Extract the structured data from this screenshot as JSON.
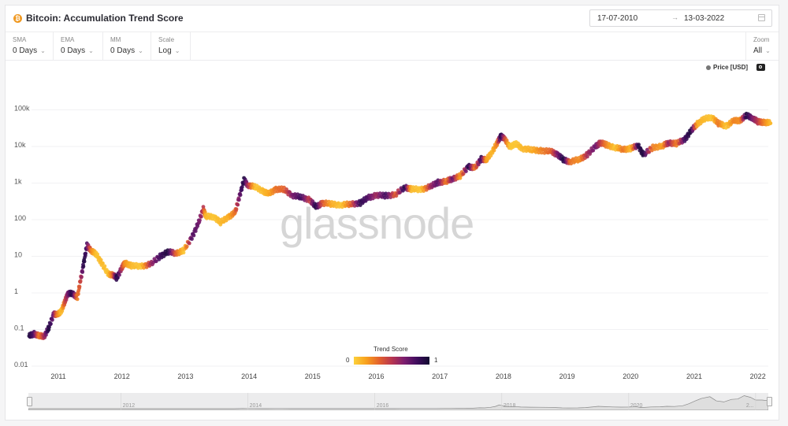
{
  "header": {
    "title": "Bitcoin: Accumulation Trend Score",
    "asset_icon": "bitcoin-icon",
    "date_from": "17-07-2010",
    "date_arrow": "→",
    "date_to": "13-03-2022",
    "calendar_icon": "calendar-icon"
  },
  "controls": {
    "sma": {
      "label": "SMA",
      "value": "0 Days"
    },
    "ema": {
      "label": "EMA",
      "value": "0 Days"
    },
    "mm": {
      "label": "MM",
      "value": "0 Days"
    },
    "scale": {
      "label": "Scale",
      "value": "Log"
    },
    "zoom": {
      "label": "Zoom",
      "value": "All"
    },
    "chevron": "⌄"
  },
  "legend": {
    "series_label": "Price [USD]",
    "camera_icon": "camera-icon"
  },
  "colorbar": {
    "title": "Trend Score",
    "min_label": "0",
    "max_label": "1"
  },
  "watermark": "glassnode",
  "navigator": {
    "labels": [
      "2012",
      "2014",
      "2016",
      "2018",
      "2020",
      "2..."
    ]
  },
  "colors": {
    "score_0": "#fcd13a",
    "score_025": "#f8a01e",
    "score_05": "#b8364f",
    "score_075": "#3f0d5e",
    "score_1": "#110a30",
    "bitcoin_orange": "#f09a24"
  },
  "chart_data": {
    "type": "scatter",
    "title": "Bitcoin: Accumulation Trend Score",
    "xlabel": "",
    "ylabel": "Price [USD]",
    "y_scale": "log",
    "ylim": [
      0.01,
      100000
    ],
    "y_ticks": [
      "0.01",
      "0.1",
      "1",
      "10",
      "100",
      "1k",
      "10k",
      "100k"
    ],
    "x_ticks": [
      "2011",
      "2012",
      "2013",
      "2014",
      "2015",
      "2016",
      "2017",
      "2018",
      "2019",
      "2020",
      "2021",
      "2022"
    ],
    "color_by": "Trend Score",
    "color_range": [
      0,
      1
    ],
    "grid": true,
    "legend_position": "top-right",
    "points": [
      {
        "t": 2010.54,
        "price": 0.06,
        "score": 0.95
      },
      {
        "t": 2010.62,
        "price": 0.07,
        "score": 0.8
      },
      {
        "t": 2010.7,
        "price": 0.06,
        "score": 0.3
      },
      {
        "t": 2010.78,
        "price": 0.06,
        "score": 0.6
      },
      {
        "t": 2010.85,
        "price": 0.1,
        "score": 0.95
      },
      {
        "t": 2010.93,
        "price": 0.25,
        "score": 0.7
      },
      {
        "t": 2010.98,
        "price": 0.22,
        "score": 0.35
      },
      {
        "t": 2011.05,
        "price": 0.3,
        "score": 0.05
      },
      {
        "t": 2011.1,
        "price": 0.5,
        "score": 0.45
      },
      {
        "t": 2011.15,
        "price": 0.9,
        "score": 0.7
      },
      {
        "t": 2011.22,
        "price": 0.85,
        "score": 0.95
      },
      {
        "t": 2011.3,
        "price": 0.7,
        "score": 0.3
      },
      {
        "t": 2011.35,
        "price": 2,
        "score": 0.5
      },
      {
        "t": 2011.4,
        "price": 6,
        "score": 0.95
      },
      {
        "t": 2011.45,
        "price": 18,
        "score": 0.8
      },
      {
        "t": 2011.52,
        "price": 13,
        "score": 0.3
      },
      {
        "t": 2011.6,
        "price": 10,
        "score": 0.05
      },
      {
        "t": 2011.68,
        "price": 6,
        "score": 0.1
      },
      {
        "t": 2011.78,
        "price": 3,
        "score": 0.05
      },
      {
        "t": 2011.86,
        "price": 2.8,
        "score": 0.4
      },
      {
        "t": 2011.92,
        "price": 2.3,
        "score": 0.95
      },
      {
        "t": 2012.0,
        "price": 4.5,
        "score": 0.55
      },
      {
        "t": 2012.05,
        "price": 6,
        "score": 0.25
      },
      {
        "t": 2012.15,
        "price": 5,
        "score": 0.1
      },
      {
        "t": 2012.3,
        "price": 4.8,
        "score": 0.05
      },
      {
        "t": 2012.45,
        "price": 5.5,
        "score": 0.6
      },
      {
        "t": 2012.6,
        "price": 9,
        "score": 0.85
      },
      {
        "t": 2012.72,
        "price": 12,
        "score": 0.95
      },
      {
        "t": 2012.85,
        "price": 11,
        "score": 0.4
      },
      {
        "t": 2012.97,
        "price": 13,
        "score": 0.05
      },
      {
        "t": 2013.1,
        "price": 30,
        "score": 0.8
      },
      {
        "t": 2013.2,
        "price": 70,
        "score": 0.75
      },
      {
        "t": 2013.28,
        "price": 180,
        "score": 0.55
      },
      {
        "t": 2013.32,
        "price": 110,
        "score": 0.1
      },
      {
        "t": 2013.45,
        "price": 110,
        "score": 0.05
      },
      {
        "t": 2013.55,
        "price": 75,
        "score": 0.1
      },
      {
        "t": 2013.68,
        "price": 110,
        "score": 0.15
      },
      {
        "t": 2013.78,
        "price": 140,
        "score": 0.35
      },
      {
        "t": 2013.85,
        "price": 400,
        "score": 0.75
      },
      {
        "t": 2013.92,
        "price": 1100,
        "score": 0.95
      },
      {
        "t": 2013.98,
        "price": 800,
        "score": 0.6
      },
      {
        "t": 2014.1,
        "price": 700,
        "score": 0.05
      },
      {
        "t": 2014.22,
        "price": 550,
        "score": 0.1
      },
      {
        "t": 2014.3,
        "price": 450,
        "score": 0.15
      },
      {
        "t": 2014.42,
        "price": 620,
        "score": 0.35
      },
      {
        "t": 2014.55,
        "price": 600,
        "score": 0.4
      },
      {
        "t": 2014.68,
        "price": 420,
        "score": 0.7
      },
      {
        "t": 2014.82,
        "price": 370,
        "score": 0.85
      },
      {
        "t": 2014.95,
        "price": 320,
        "score": 0.5
      },
      {
        "t": 2015.05,
        "price": 200,
        "score": 0.95
      },
      {
        "t": 2015.15,
        "price": 260,
        "score": 0.45
      },
      {
        "t": 2015.3,
        "price": 240,
        "score": 0.15
      },
      {
        "t": 2015.45,
        "price": 230,
        "score": 0.05
      },
      {
        "t": 2015.6,
        "price": 240,
        "score": 0.4
      },
      {
        "t": 2015.75,
        "price": 260,
        "score": 0.9
      },
      {
        "t": 2015.87,
        "price": 360,
        "score": 0.8
      },
      {
        "t": 2016.0,
        "price": 420,
        "score": 0.6
      },
      {
        "t": 2016.15,
        "price": 410,
        "score": 0.85
      },
      {
        "t": 2016.3,
        "price": 440,
        "score": 0.4
      },
      {
        "t": 2016.45,
        "price": 700,
        "score": 0.95
      },
      {
        "t": 2016.55,
        "price": 620,
        "score": 0.1
      },
      {
        "t": 2016.7,
        "price": 600,
        "score": 0.05
      },
      {
        "t": 2016.85,
        "price": 720,
        "score": 0.6
      },
      {
        "t": 2016.97,
        "price": 950,
        "score": 0.8
      },
      {
        "t": 2017.1,
        "price": 1000,
        "score": 0.3
      },
      {
        "t": 2017.2,
        "price": 1200,
        "score": 0.75
      },
      {
        "t": 2017.32,
        "price": 1400,
        "score": 0.2
      },
      {
        "t": 2017.45,
        "price": 2600,
        "score": 0.95
      },
      {
        "t": 2017.55,
        "price": 2300,
        "score": 0.3
      },
      {
        "t": 2017.65,
        "price": 4200,
        "score": 0.9
      },
      {
        "t": 2017.73,
        "price": 3800,
        "score": 0.2
      },
      {
        "t": 2017.82,
        "price": 6500,
        "score": 0.1
      },
      {
        "t": 2017.9,
        "price": 11000,
        "score": 0.3
      },
      {
        "t": 2017.96,
        "price": 18000,
        "score": 0.95
      },
      {
        "t": 2018.02,
        "price": 14000,
        "score": 0.5
      },
      {
        "t": 2018.1,
        "price": 9000,
        "score": 0.05
      },
      {
        "t": 2018.2,
        "price": 10500,
        "score": 0.05
      },
      {
        "t": 2018.3,
        "price": 8000,
        "score": 0.1
      },
      {
        "t": 2018.45,
        "price": 7200,
        "score": 0.15
      },
      {
        "t": 2018.6,
        "price": 7000,
        "score": 0.3
      },
      {
        "t": 2018.75,
        "price": 6500,
        "score": 0.4
      },
      {
        "t": 2018.85,
        "price": 5500,
        "score": 0.7
      },
      {
        "t": 2018.95,
        "price": 3800,
        "score": 0.95
      },
      {
        "t": 2019.05,
        "price": 3500,
        "score": 0.35
      },
      {
        "t": 2019.2,
        "price": 4000,
        "score": 0.25
      },
      {
        "t": 2019.32,
        "price": 5500,
        "score": 0.6
      },
      {
        "t": 2019.45,
        "price": 9000,
        "score": 0.75
      },
      {
        "t": 2019.52,
        "price": 11500,
        "score": 0.55
      },
      {
        "t": 2019.62,
        "price": 10000,
        "score": 0.3
      },
      {
        "t": 2019.75,
        "price": 8500,
        "score": 0.05
      },
      {
        "t": 2019.88,
        "price": 7500,
        "score": 0.35
      },
      {
        "t": 2020.0,
        "price": 8000,
        "score": 0.1
      },
      {
        "t": 2020.12,
        "price": 9500,
        "score": 0.9
      },
      {
        "t": 2020.2,
        "price": 5300,
        "score": 0.95
      },
      {
        "t": 2020.35,
        "price": 8500,
        "score": 0.3
      },
      {
        "t": 2020.5,
        "price": 9300,
        "score": 0.2
      },
      {
        "t": 2020.6,
        "price": 11500,
        "score": 0.65
      },
      {
        "t": 2020.72,
        "price": 10800,
        "score": 0.3
      },
      {
        "t": 2020.85,
        "price": 14000,
        "score": 0.85
      },
      {
        "t": 2020.95,
        "price": 24000,
        "score": 0.95
      },
      {
        "t": 2021.05,
        "price": 38000,
        "score": 0.15
      },
      {
        "t": 2021.15,
        "price": 50000,
        "score": 0.1
      },
      {
        "t": 2021.28,
        "price": 58000,
        "score": 0.05
      },
      {
        "t": 2021.38,
        "price": 38000,
        "score": 0.35
      },
      {
        "t": 2021.5,
        "price": 33000,
        "score": 0.05
      },
      {
        "t": 2021.62,
        "price": 45000,
        "score": 0.3
      },
      {
        "t": 2021.72,
        "price": 47000,
        "score": 0.25
      },
      {
        "t": 2021.82,
        "price": 63000,
        "score": 0.95
      },
      {
        "t": 2021.92,
        "price": 55000,
        "score": 0.7
      },
      {
        "t": 2022.0,
        "price": 42000,
        "score": 0.55
      },
      {
        "t": 2022.1,
        "price": 42000,
        "score": 0.3
      },
      {
        "t": 2022.2,
        "price": 39000,
        "score": 0.1
      }
    ]
  }
}
